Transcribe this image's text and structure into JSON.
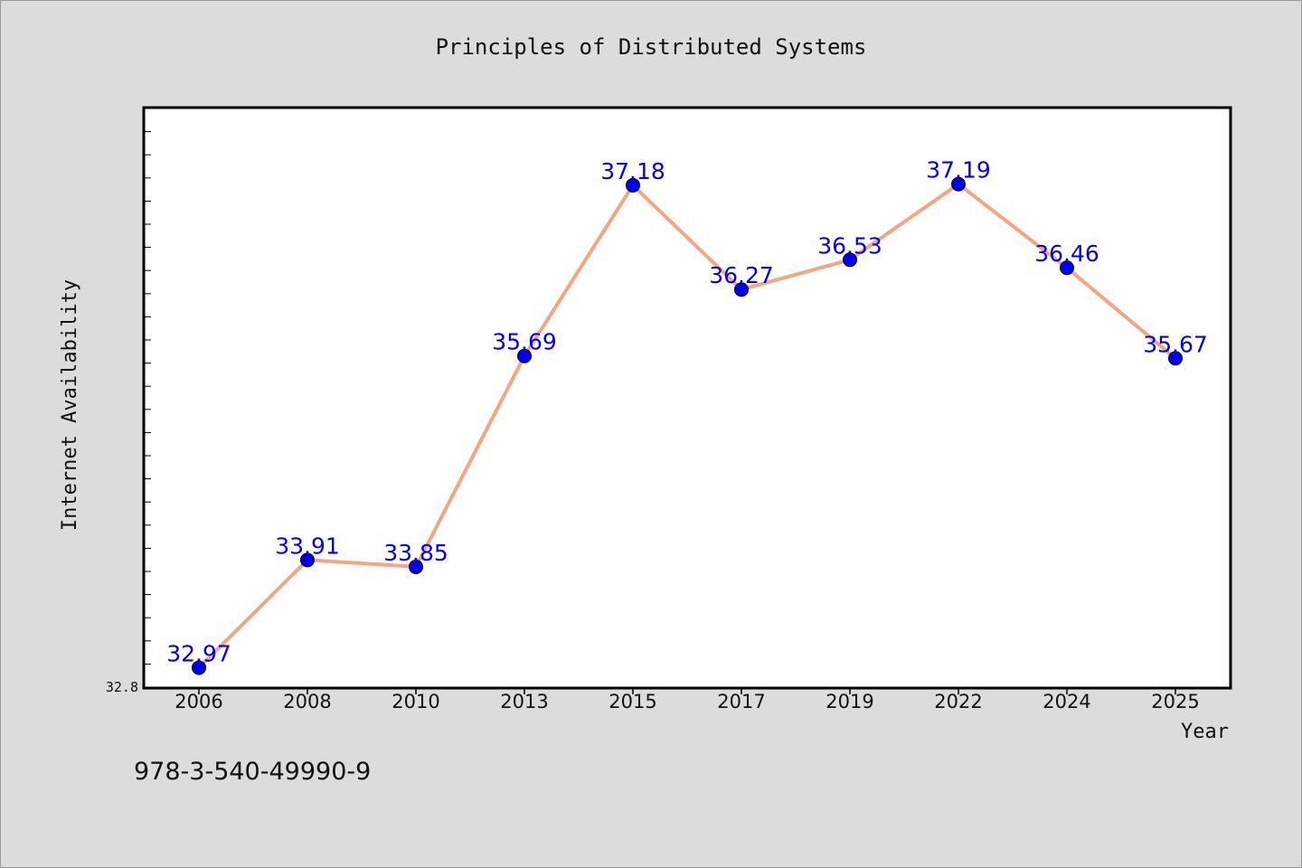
{
  "chart_data": {
    "type": "line",
    "title": "Principles of Distributed Systems",
    "xlabel": "Year",
    "ylabel": "Internet Availability",
    "categories": [
      "2006",
      "2008",
      "2010",
      "2013",
      "2015",
      "2017",
      "2019",
      "2022",
      "2024",
      "2025"
    ],
    "series": [
      {
        "values": [
          32.97,
          33.91,
          33.85,
          35.69,
          37.18,
          36.27,
          36.53,
          37.19,
          36.46,
          35.67
        ],
        "line_color": "#f4a582",
        "marker_color": "#0000ee"
      }
    ],
    "y_tick_labels": [
      "32.8"
    ],
    "ylim": [
      32.8,
      37.85
    ],
    "grid": false,
    "legend": "none",
    "data_label_color": "#0000ee",
    "background_color": "#dcdcdc",
    "plot_background_color": "#ffffff"
  },
  "footer": {
    "isbn": "978-3-540-49990-9"
  }
}
